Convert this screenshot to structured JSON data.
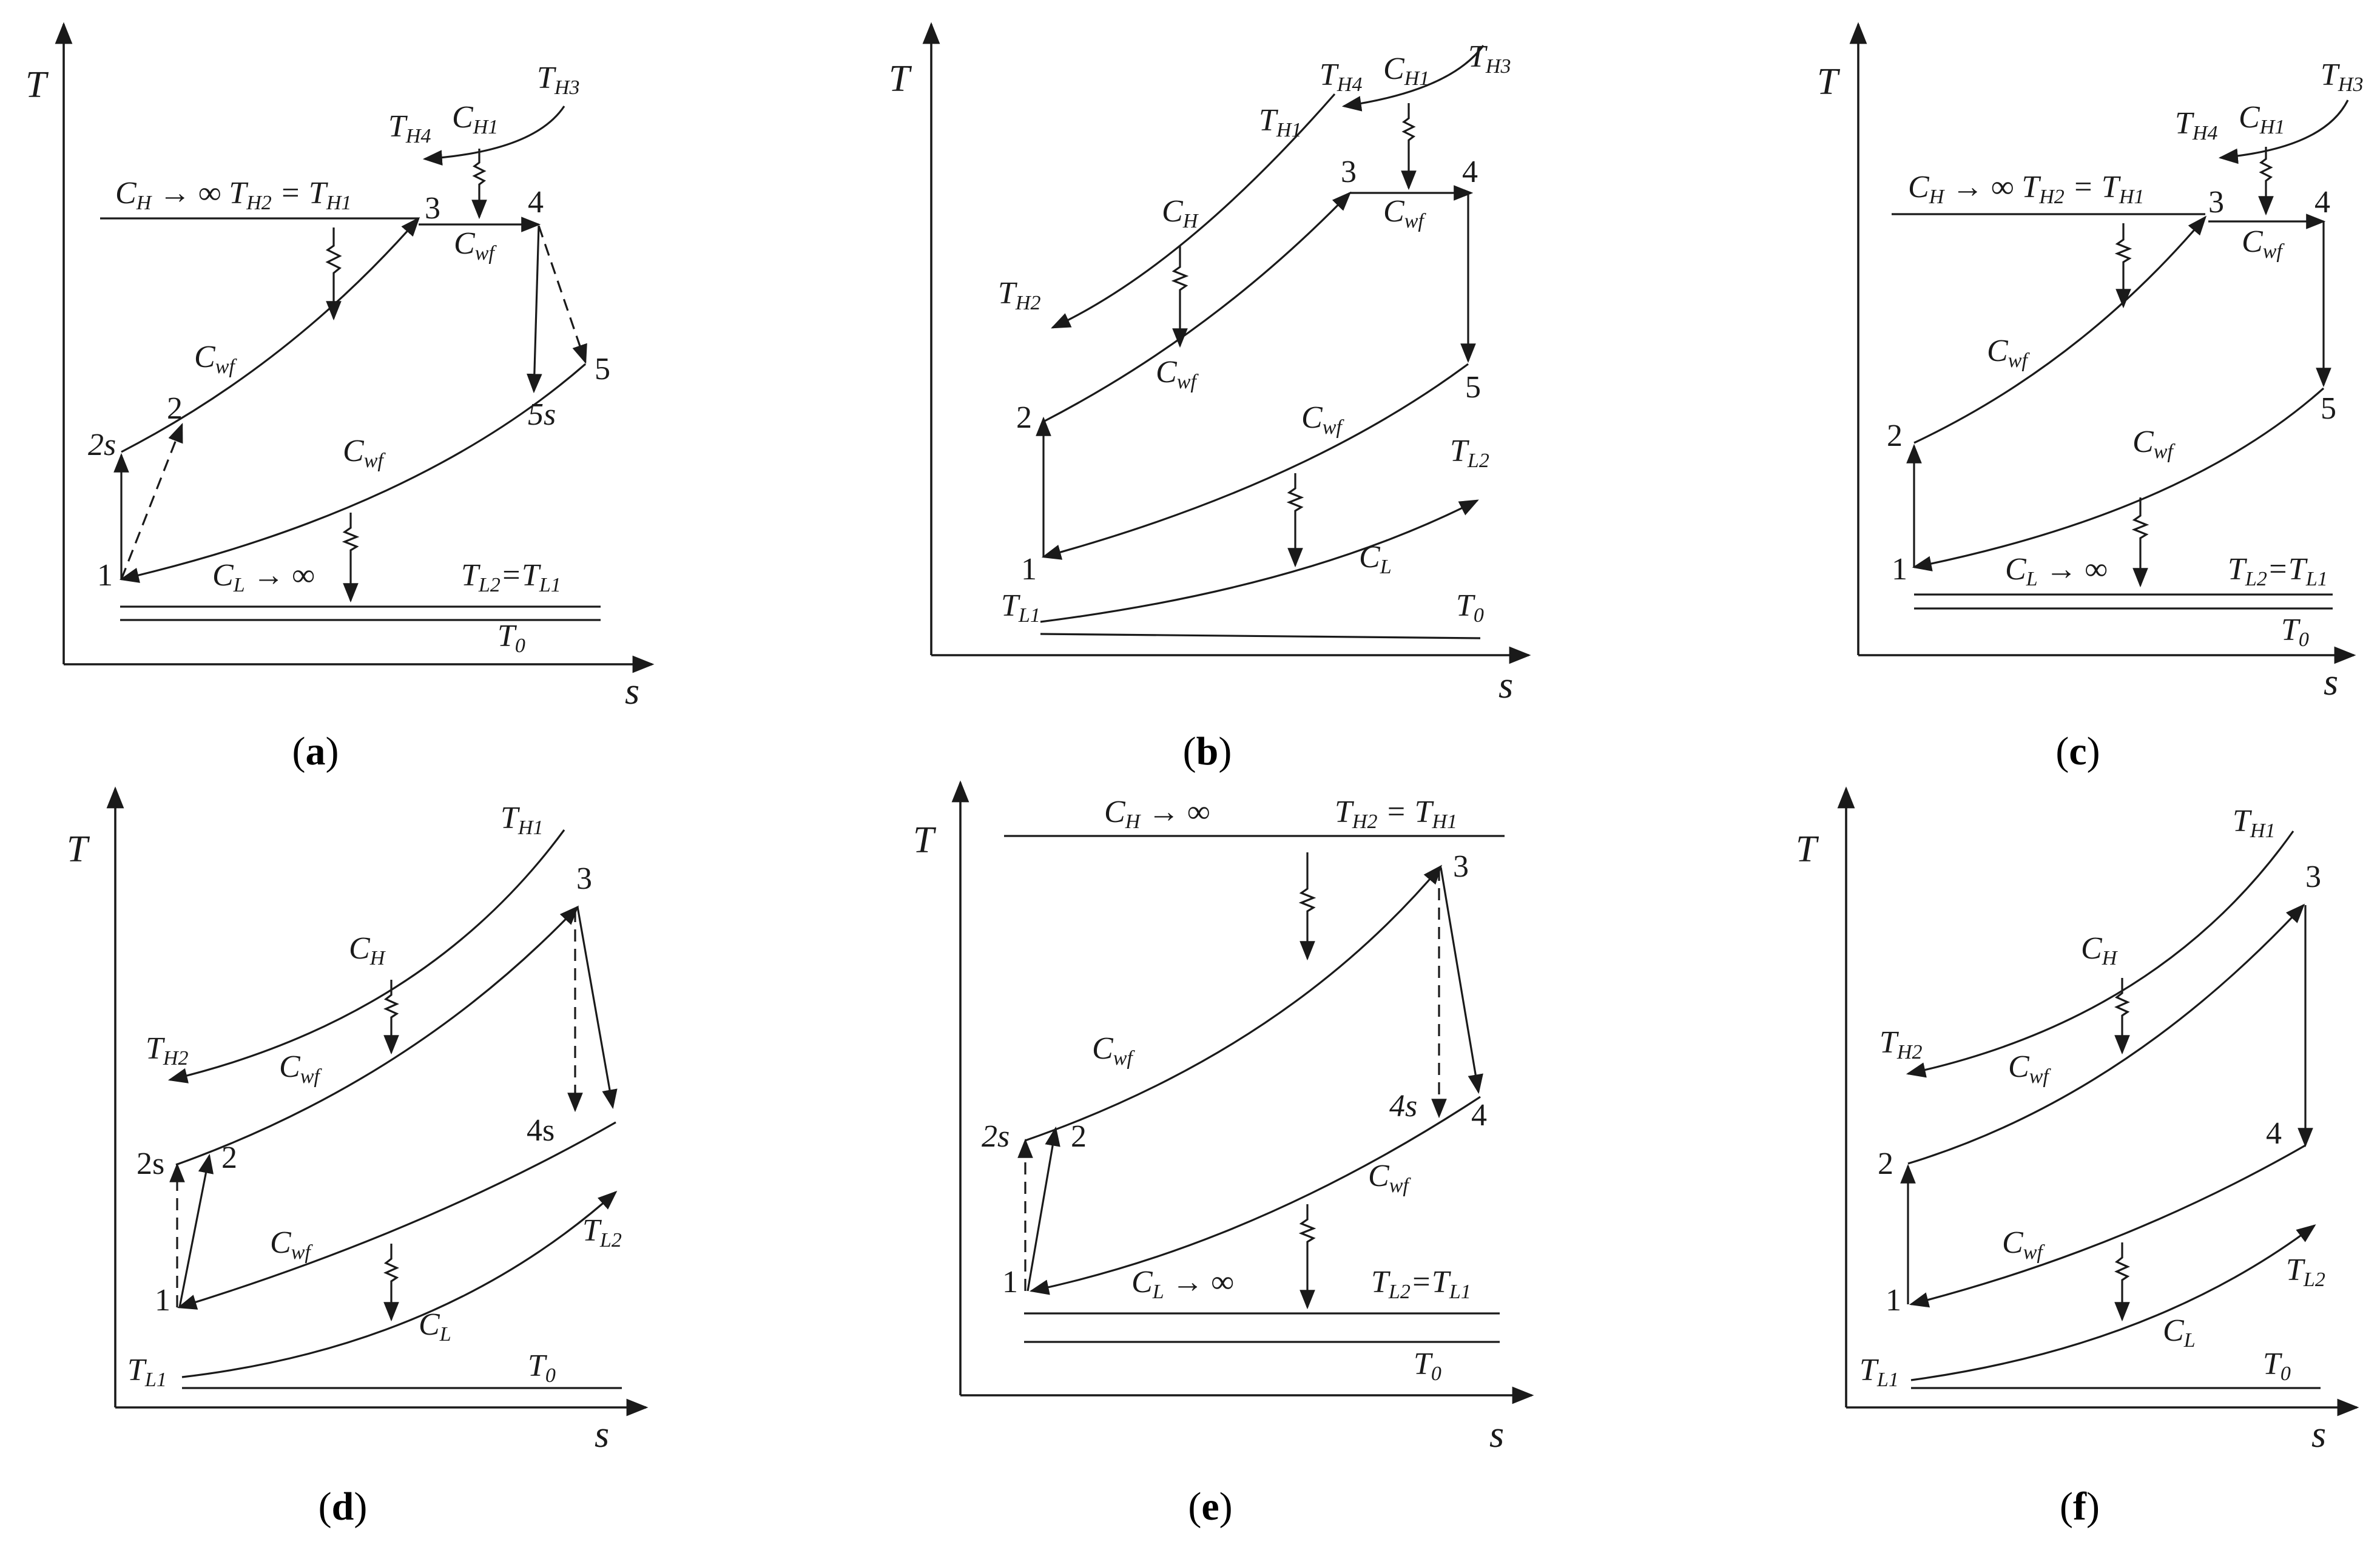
{
  "panels": [
    {
      "id": "a",
      "caption": "a",
      "axis_y": "T",
      "axis_x": "s",
      "points": [
        "1",
        "2s",
        "2",
        "3",
        "4",
        "5s",
        "5"
      ],
      "streams": [
        "C_H → ∞ T_H2 = T_H1",
        "T_H4",
        "C_H1",
        "T_H3",
        "C_wf",
        "C_L → ∞",
        "T_L2 = T_L1",
        "T_0"
      ]
    },
    {
      "id": "b",
      "caption": "b",
      "axis_y": "T",
      "axis_x": "s",
      "points": [
        "1",
        "2",
        "3",
        "4",
        "5"
      ],
      "streams": [
        "T_H4",
        "C_H1",
        "T_H3",
        "T_H1",
        "C_H",
        "T_H2",
        "C_wf",
        "T_L2",
        "C_L",
        "T_L1",
        "T_0"
      ]
    },
    {
      "id": "c",
      "caption": "c",
      "axis_y": "T",
      "axis_x": "s",
      "points": [
        "1",
        "2",
        "3",
        "4",
        "5"
      ],
      "streams": [
        "T_H4",
        "C_H1",
        "T_H3",
        "C_H → ∞ T_H2 = T_H1",
        "C_wf",
        "C_L → ∞",
        "T_L2=T_L1",
        "T_0"
      ]
    },
    {
      "id": "d",
      "caption": "d",
      "axis_y": "T",
      "axis_x": "s",
      "points": [
        "1",
        "2s",
        "2",
        "3",
        "4s"
      ],
      "streams": [
        "T_H1",
        "C_H",
        "T_H2",
        "C_wf",
        "T_L2",
        "C_L",
        "T_L1",
        "T_0"
      ]
    },
    {
      "id": "e",
      "caption": "e",
      "axis_y": "T",
      "axis_x": "s",
      "points": [
        "1",
        "2s",
        "2",
        "3",
        "4s",
        "4"
      ],
      "streams": [
        "C_H → ∞",
        "T_H2 = T_H1",
        "C_wf",
        "C_L → ∞",
        "T_L2=T_L1",
        "T_0"
      ]
    },
    {
      "id": "f",
      "caption": "f",
      "axis_y": "T",
      "axis_x": "s",
      "points": [
        "1",
        "2",
        "3",
        "4"
      ],
      "streams": [
        "T_H1",
        "C_H",
        "T_H2",
        "C_wf",
        "T_L2",
        "C_L",
        "T_L1",
        "T_0"
      ]
    }
  ]
}
